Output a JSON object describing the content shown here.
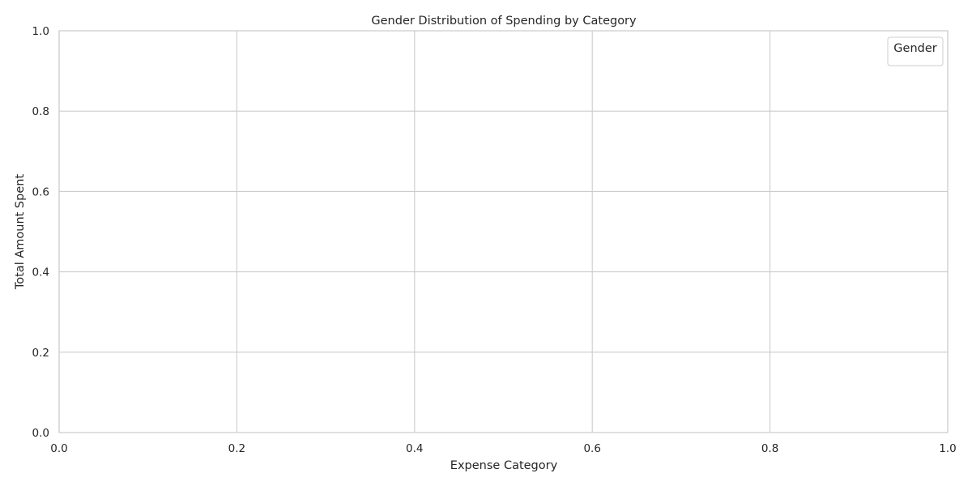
{
  "chart_data": {
    "type": "bar",
    "title": "Gender Distribution of Spending by Category",
    "xlabel": "Expense Category",
    "ylabel": "Total Amount Spent",
    "xlim": [
      0.0,
      1.0
    ],
    "ylim": [
      0.0,
      1.0
    ],
    "x_ticks": [
      "0.0",
      "0.2",
      "0.4",
      "0.6",
      "0.8",
      "1.0"
    ],
    "y_ticks": [
      "0.0",
      "0.2",
      "0.4",
      "0.6",
      "0.8",
      "1.0"
    ],
    "x_tick_values": [
      0.0,
      0.2,
      0.4,
      0.6,
      0.8,
      1.0
    ],
    "y_tick_values": [
      0.0,
      0.2,
      0.4,
      0.6,
      0.8,
      1.0
    ],
    "categories": [],
    "series": [],
    "grid": true,
    "legend": {
      "title": "Gender",
      "placement": "top-right",
      "entries": []
    },
    "colors": {
      "grid": "#cccccc",
      "spine": "#cccccc",
      "text": "#262626",
      "background": "#ffffff"
    }
  }
}
